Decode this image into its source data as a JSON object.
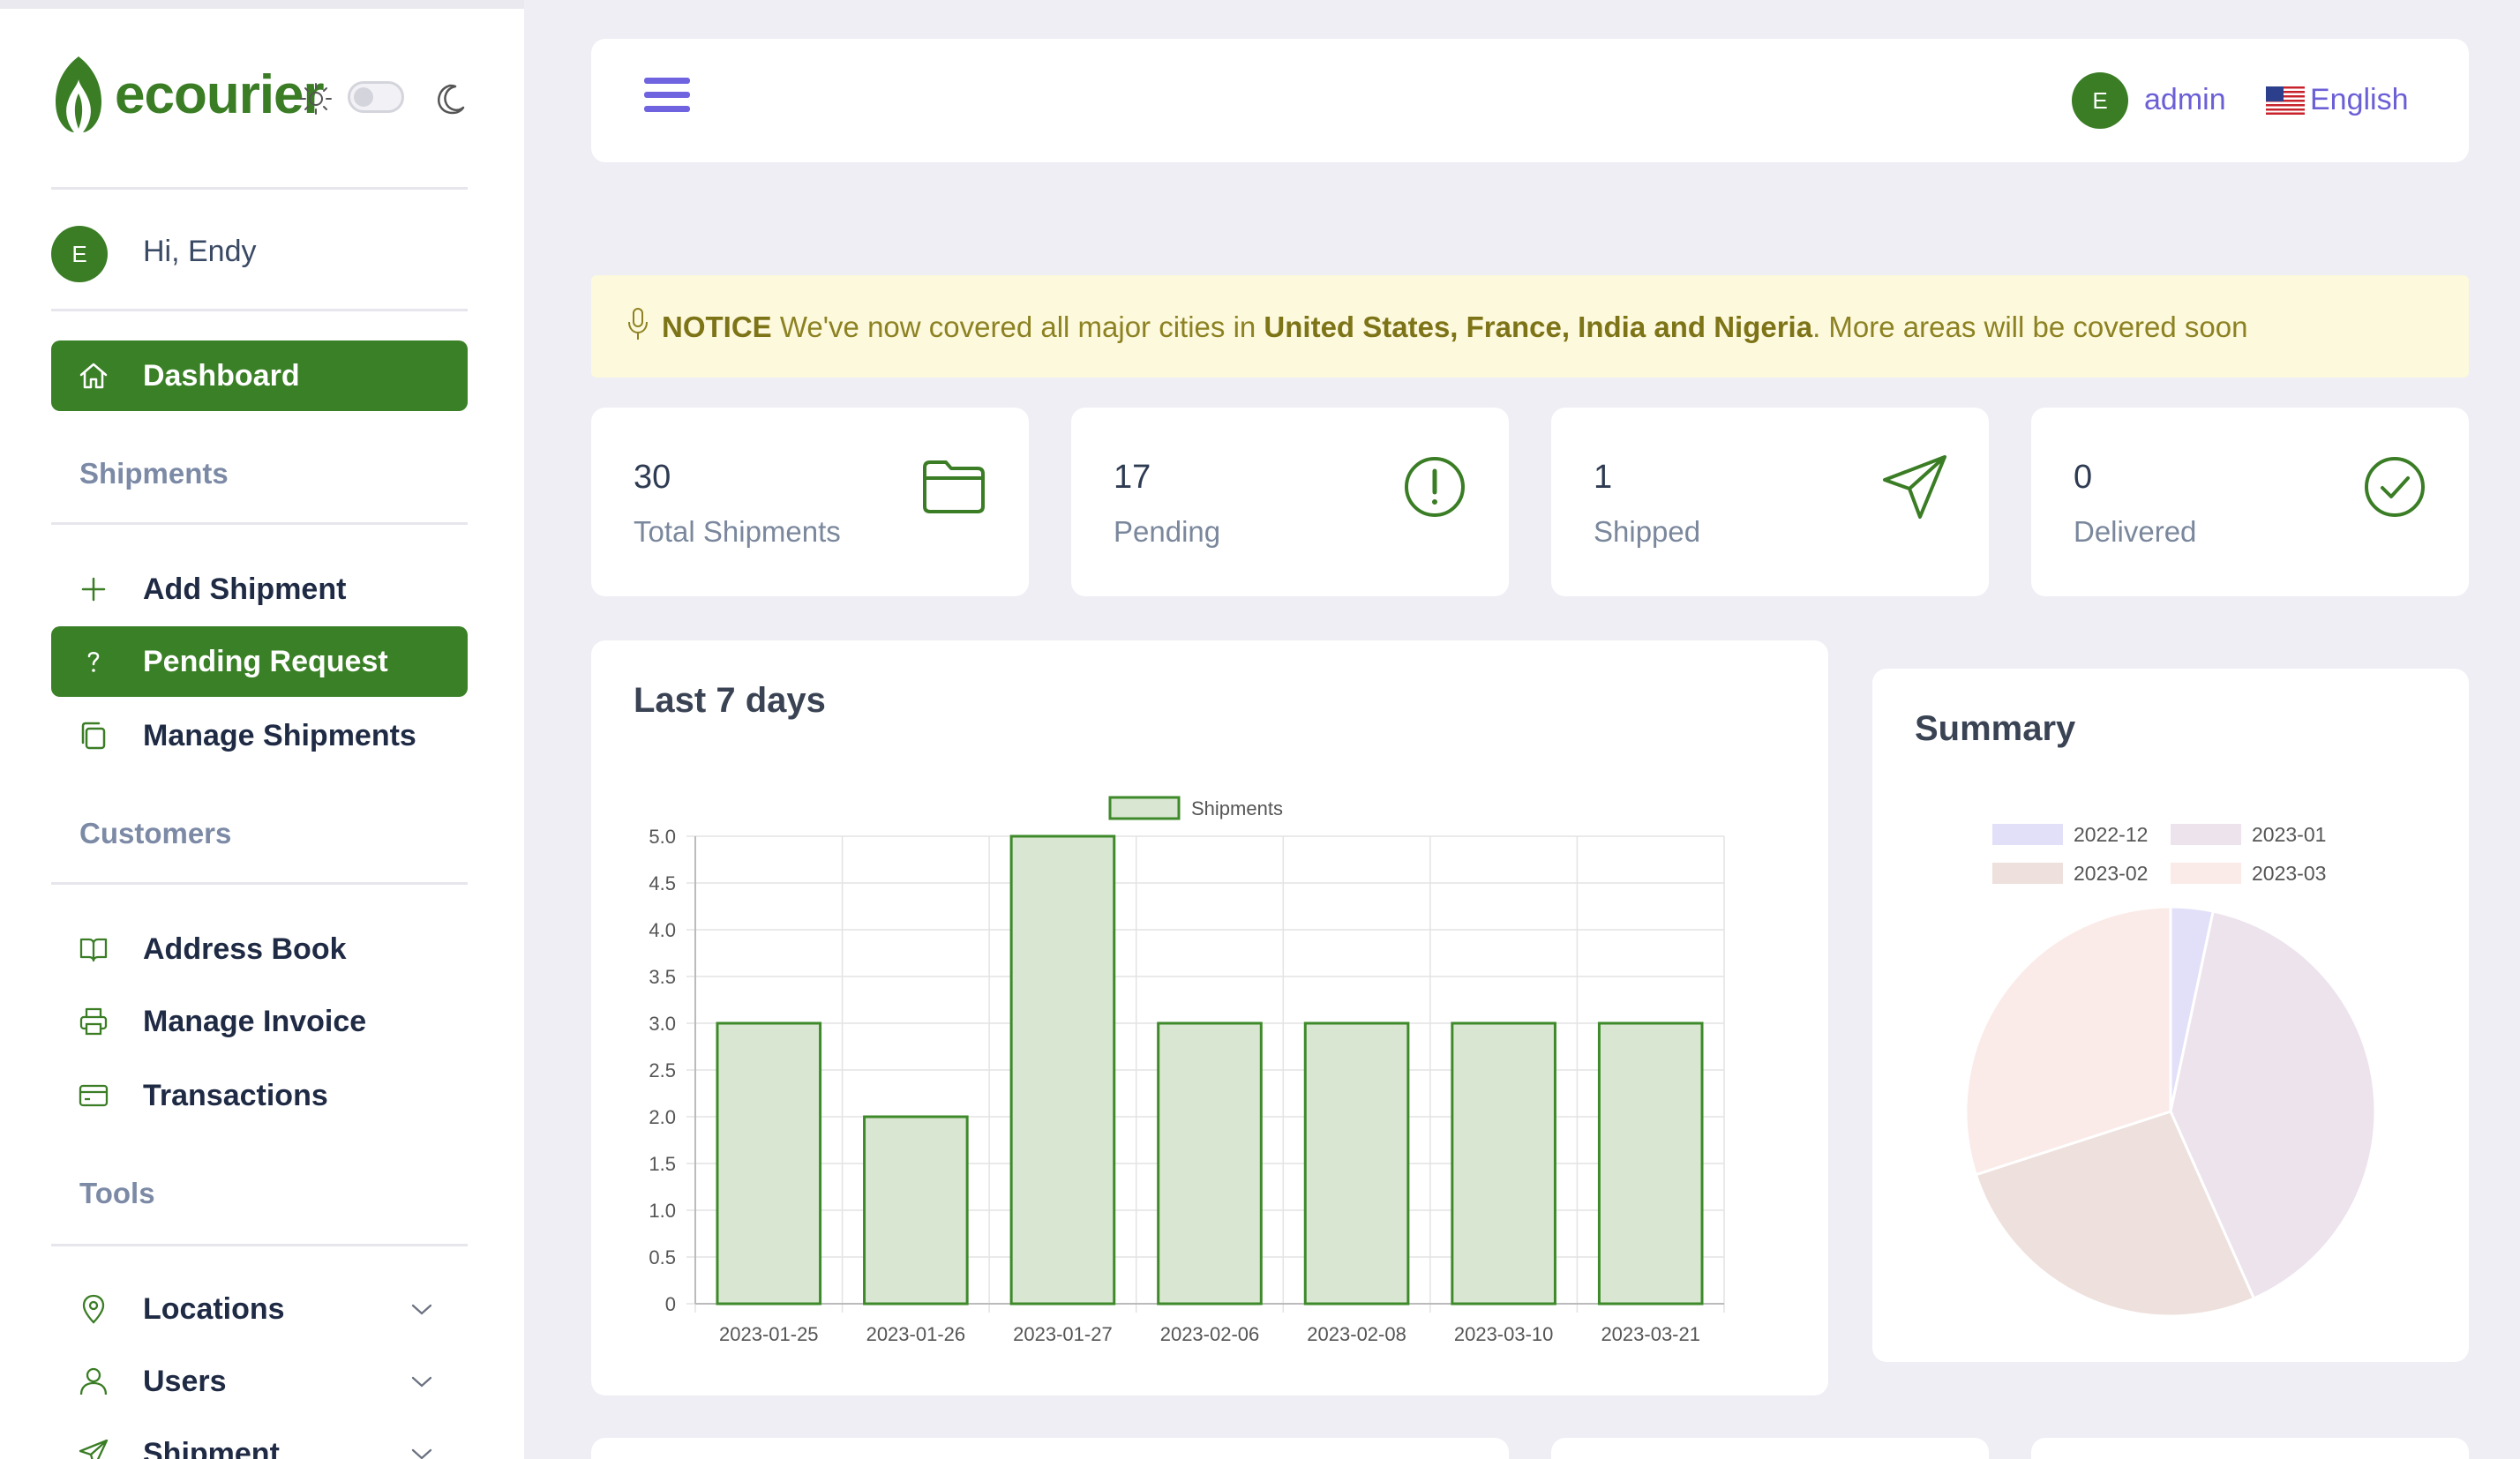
{
  "brand": {
    "name": "ecourier",
    "color": "#3a7d25"
  },
  "user": {
    "initial": "E",
    "greeting": "Hi, Endy"
  },
  "sidebar": {
    "dashboard": "Dashboard",
    "sections": {
      "shipments": "Shipments",
      "customers": "Customers",
      "tools": "Tools"
    },
    "items": {
      "add_shipment": "Add Shipment",
      "pending_request": "Pending Request",
      "manage_shipments": "Manage Shipments",
      "address_book": "Address Book",
      "manage_invoice": "Manage Invoice",
      "transactions": "Transactions",
      "locations": "Locations",
      "users": "Users",
      "shipment": "Shipment"
    }
  },
  "topbar": {
    "avatar_initial": "E",
    "username": "admin",
    "language": "English"
  },
  "notice": {
    "label": "NOTICE",
    "text_before": " We've now covered all major cities in ",
    "highlight": "United States, France, India and Nigeria",
    "text_after": ". More areas will be covered soon"
  },
  "stats": [
    {
      "value": "30",
      "label": "Total Shipments",
      "icon": "folder-icon"
    },
    {
      "value": "17",
      "label": "Pending",
      "icon": "alert-circle-icon"
    },
    {
      "value": "1",
      "label": "Shipped",
      "icon": "send-icon"
    },
    {
      "value": "0",
      "label": "Delivered",
      "icon": "check-circle-icon"
    }
  ],
  "colors": {
    "accent_green": "#3a8026",
    "accent_purple": "#6f63e0",
    "notice_bg": "#fdf9dc"
  },
  "chart_data": [
    {
      "type": "bar",
      "title": "Last 7 days",
      "categories": [
        "2023-01-25",
        "2023-01-26",
        "2023-01-27",
        "2023-02-06",
        "2023-02-08",
        "2023-03-10",
        "2023-03-21"
      ],
      "series": [
        {
          "name": "Shipments",
          "values": [
            3,
            2,
            5,
            3,
            3,
            3,
            3
          ],
          "fill": "#d9e7d2",
          "stroke": "#3e8a2b"
        }
      ],
      "ylim": [
        0,
        5
      ],
      "yticks": [
        "0",
        "0.5",
        "1.0",
        "1.5",
        "2.0",
        "2.5",
        "3.0",
        "3.5",
        "4.0",
        "4.5",
        "5.0"
      ],
      "legend": "top",
      "grid": true
    },
    {
      "type": "pie",
      "title": "Summary",
      "labels": [
        "2022-12",
        "2023-01",
        "2023-02",
        "2023-03"
      ],
      "values": [
        1,
        12,
        8,
        9
      ],
      "colors": [
        "#e2e0f9",
        "#ede3ed",
        "#eee0dc",
        "#faebe8"
      ],
      "legend": "top"
    }
  ]
}
